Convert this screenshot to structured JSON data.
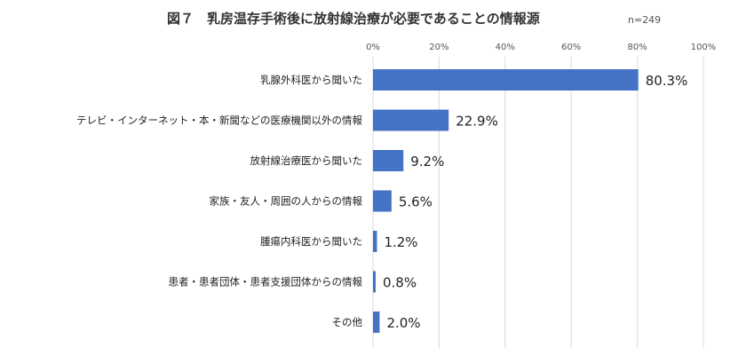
{
  "title": "図７　乳房温存手術後に放射線治療が必要であることの情報源",
  "sample_note": "n=249",
  "chart_data": {
    "type": "bar",
    "orientation": "horizontal",
    "categories": [
      "乳腺外科医から聞いた",
      "テレビ・インターネット・本・新聞などの医療機関以外の情報",
      "放射線治療医から聞いた",
      "家族・友人・周囲の人からの情報",
      "腫瘍内科医から聞いた",
      "患者・患者団体・患者支援団体からの情報",
      "その他"
    ],
    "values": [
      80.3,
      22.9,
      9.2,
      5.6,
      1.2,
      0.8,
      2.0
    ],
    "value_labels": [
      "80.3%",
      "22.9%",
      "9.2%",
      "5.6%",
      "1.2%",
      "0.8%",
      "2.0%"
    ],
    "xticks": [
      "0%",
      "20%",
      "40%",
      "60%",
      "80%",
      "100%"
    ],
    "xlim": [
      0,
      100
    ],
    "grid": true,
    "bar_color": "#4472c4"
  }
}
